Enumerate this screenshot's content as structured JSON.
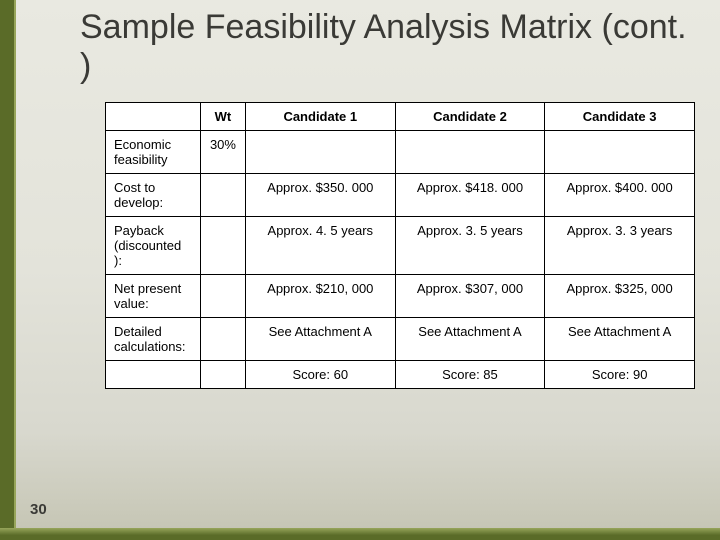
{
  "title": "Sample Feasibility Analysis Matrix (cont. )",
  "page_number": "30",
  "colors": {
    "accent": "#5a6b28",
    "accent_light": "#97a55a",
    "bg_top": "#e9e9e1",
    "bg_bottom": "#c4c4b2",
    "text": "#3a3a36",
    "border": "#000000",
    "cell_bg": "#ffffff"
  },
  "matrix": {
    "headers": {
      "wt": "Wt",
      "c1": "Candidate 1",
      "c2": "Candidate 2",
      "c3": "Candidate 3"
    },
    "rows": [
      {
        "label": "Economic feasibility",
        "wt": "30%",
        "c1": "",
        "c2": "",
        "c3": ""
      },
      {
        "label": "Cost to develop:",
        "wt": "",
        "c1": "Approx. $350. 000",
        "c2": "Approx. $418. 000",
        "c3": "Approx. $400. 000"
      },
      {
        "label": "Payback (discounted ):",
        "wt": "",
        "c1": "Approx. 4. 5 years",
        "c2": "Approx. 3. 5 years",
        "c3": "Approx. 3. 3 years"
      },
      {
        "label": "Net present value:",
        "wt": "",
        "c1": "Approx.  $210, 000",
        "c2": "Approx.  $307, 000",
        "c3": "Approx.  $325, 000"
      },
      {
        "label": "Detailed calculations:",
        "wt": "",
        "c1": "See Attachment A",
        "c2": "See Attachment A",
        "c3": "See Attachment A"
      },
      {
        "label": "",
        "wt": "",
        "c1": "Score: 60",
        "c2": "Score: 85",
        "c3": "Score: 90"
      }
    ]
  }
}
